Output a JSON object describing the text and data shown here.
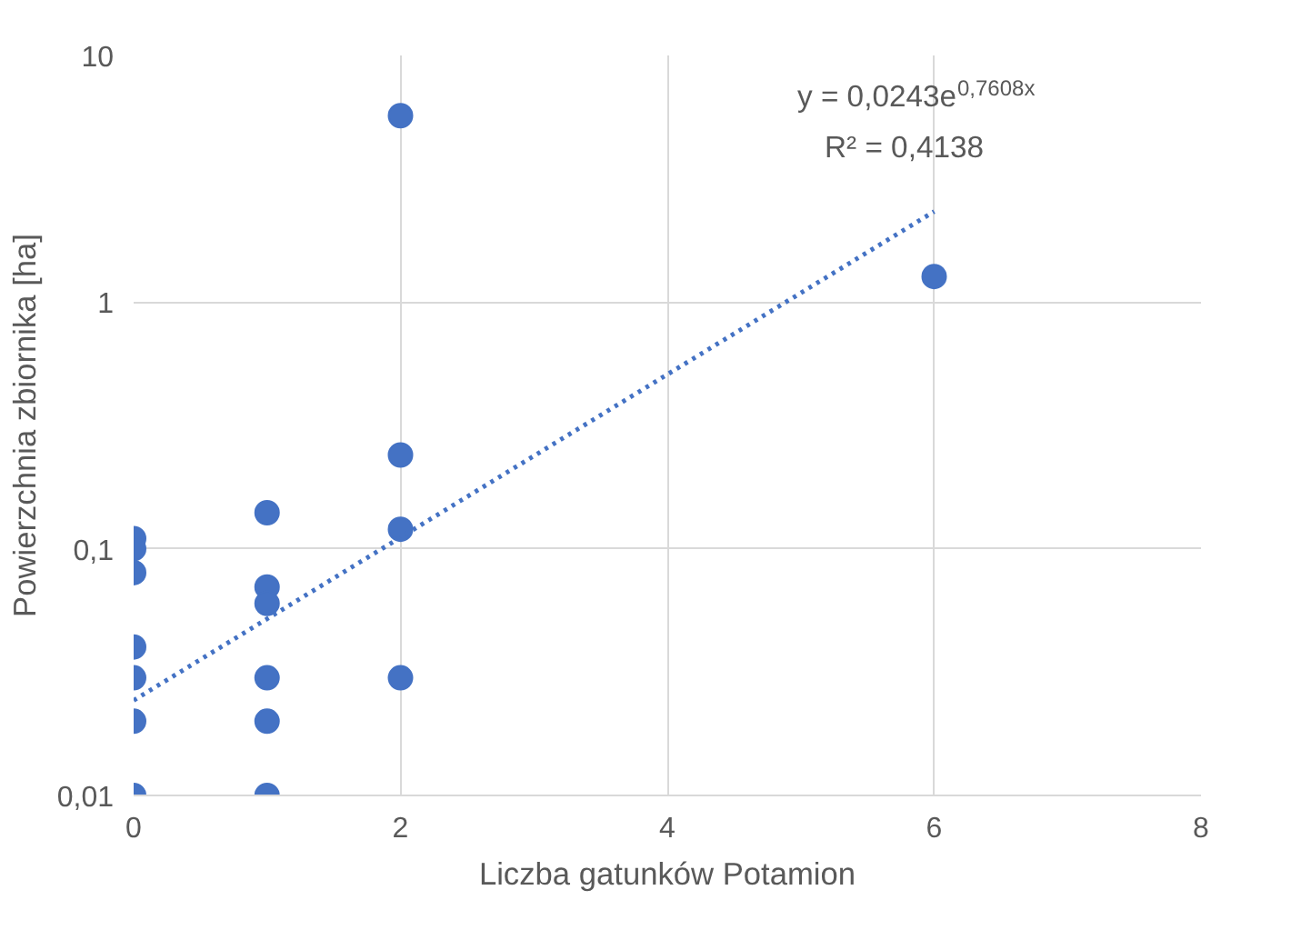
{
  "chart_data": {
    "type": "scatter",
    "xlabel": "Liczba gatunków Potamion",
    "ylabel": "Powierzchnia zbiornika [ha]",
    "log": "y",
    "xlim": [
      0,
      8
    ],
    "xticks": [
      0,
      2,
      4,
      6,
      8
    ],
    "ylim": [
      0.01,
      10
    ],
    "yticks": [
      {
        "value": 0.01,
        "label": "0,01"
      },
      {
        "value": 0.1,
        "label": "0,1"
      },
      {
        "value": 1,
        "label": "1"
      },
      {
        "value": 10,
        "label": "10"
      }
    ],
    "grid": true,
    "series": [
      {
        "marker": "circle",
        "color": "#4472c4",
        "x": [
          0,
          0,
          0,
          0,
          0,
          0,
          0,
          1,
          1,
          1,
          1,
          1,
          1,
          2,
          2,
          2,
          2,
          6
        ],
        "values": [
          0.11,
          0.1,
          0.08,
          0.04,
          0.03,
          0.02,
          0.01,
          0.14,
          0.07,
          0.06,
          0.03,
          0.02,
          0.01,
          5.7,
          0.24,
          0.12,
          0.03,
          1.27
        ]
      },
      {
        "type": "line",
        "color": "#4472c4",
        "line_style": "dotted",
        "x": [
          0,
          6
        ],
        "values": [
          0.0243,
          2.33
        ]
      }
    ],
    "annotations": [
      "y = 0,0243e$^{0,7608x}$",
      "R² = 0,4138"
    ]
  }
}
